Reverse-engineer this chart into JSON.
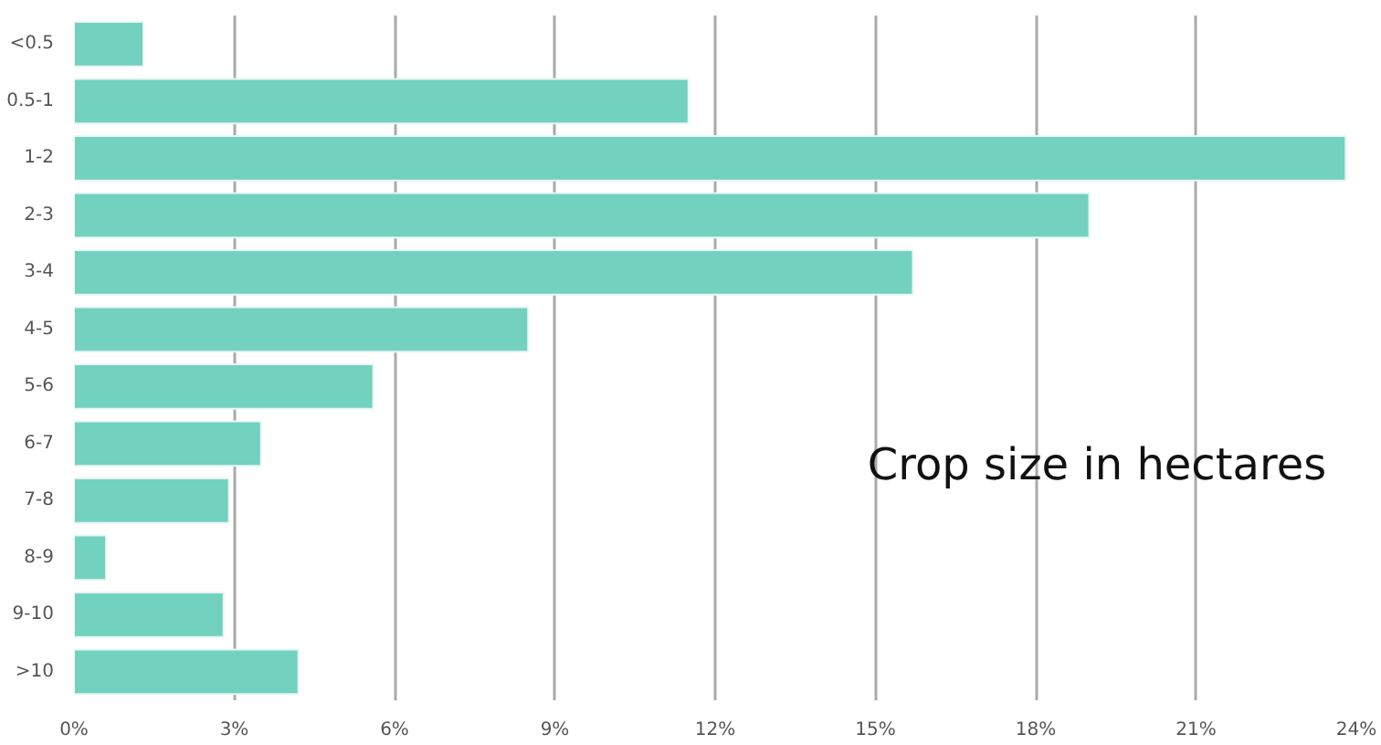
{
  "chart_data": {
    "type": "bar",
    "orientation": "horizontal",
    "categories": [
      "<0.5",
      "0.5-1",
      "1-2",
      "2-3",
      "3-4",
      "4-5",
      "5-6",
      "6-7",
      "7-8",
      "8-9",
      "9-10",
      ">10"
    ],
    "values": [
      1.3,
      11.5,
      23.8,
      19.0,
      15.7,
      8.5,
      5.6,
      3.5,
      2.9,
      0.6,
      2.8,
      4.2
    ],
    "color": "#73d1c0",
    "xlim": [
      0,
      24
    ],
    "xticks": [
      {
        "value": 0,
        "label": "0%"
      },
      {
        "value": 3,
        "label": "3%"
      },
      {
        "value": 6,
        "label": "6%"
      },
      {
        "value": 9,
        "label": "9%"
      },
      {
        "value": 12,
        "label": "12%"
      },
      {
        "value": 15,
        "label": "15%"
      },
      {
        "value": 18,
        "label": "18%"
      },
      {
        "value": 21,
        "label": "21%"
      },
      {
        "value": 24,
        "label": "24%"
      }
    ],
    "grid": "x",
    "annotations": [
      "Crop size in hectares"
    ]
  }
}
